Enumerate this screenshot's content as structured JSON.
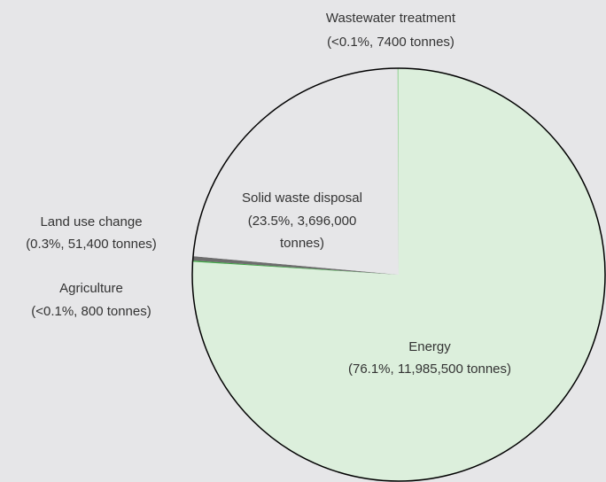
{
  "chart_data": {
    "type": "pie",
    "title": "",
    "unit": "tonnes",
    "slices": [
      {
        "name": "Energy",
        "value": 11985500,
        "percent_label": "76.1%",
        "label_lines": [
          "Energy",
          "(76.1%, 11,985,500 tonnes)"
        ],
        "color": "#dcefdc"
      },
      {
        "name": "Agriculture",
        "value": 800,
        "percent_label": "<0.1%",
        "label_lines": [
          "Agriculture",
          "(<0.1%, 800 tonnes)"
        ],
        "color": "#3fa845"
      },
      {
        "name": "Land use change",
        "value": 51400,
        "percent_label": "0.3%",
        "label_lines": [
          "Land use change",
          "(0.3%, 51,400 tonnes)"
        ],
        "color": "#6d6d6d"
      },
      {
        "name": "Solid waste disposal",
        "value": 3696000,
        "percent_label": "23.5%",
        "label_lines": [
          "Solid waste disposal",
          "(23.5%, 3,696,000",
          "tonnes)"
        ],
        "color": "#e6e6e8"
      },
      {
        "name": "Wastewater treatment",
        "value": 7400,
        "percent_label": "<0.1%",
        "label_lines": [
          "Wastewater treatment",
          "(<0.1%, 7400 tonnes)"
        ],
        "color": "#a8d8a8"
      }
    ],
    "outline_color": "#000000",
    "background_color": "#e6e6e8",
    "legend": "none"
  }
}
